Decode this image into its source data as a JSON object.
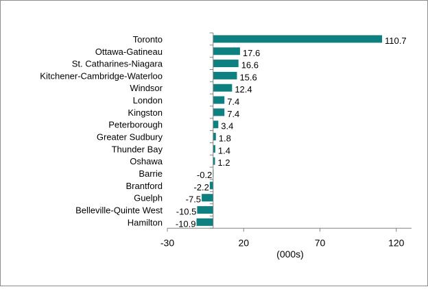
{
  "chart_data": {
    "type": "bar",
    "orientation": "horizontal",
    "categories": [
      "Toronto",
      "Ottawa-Gatineau",
      "St. Catharines-Niagara",
      "Kitchener-Cambridge-Waterloo",
      "Windsor",
      "London",
      "Kingston",
      "Peterborough",
      "Greater Sudbury",
      "Thunder Bay",
      "Oshawa",
      "Barrie",
      "Brantford",
      "Guelph",
      "Belleville-Quinte West",
      "Hamilton"
    ],
    "values": [
      110.7,
      17.6,
      16.6,
      15.6,
      12.4,
      7.4,
      7.4,
      3.4,
      1.8,
      1.4,
      1.2,
      -0.2,
      -2.2,
      -7.5,
      -10.5,
      -10.9
    ],
    "data_labels": [
      "110.7",
      "17.6",
      "16.6",
      "15.6",
      "12.4",
      "7.4",
      "7.4",
      "3.4",
      "1.8",
      "1.4",
      "1.2",
      "-0.2",
      "-2.2",
      "-7.5",
      "-10.5",
      "-10.9"
    ],
    "x_ticks": [
      "-30",
      "20",
      "70",
      "120"
    ],
    "xlabel": "(000s)",
    "xlim": [
      -30,
      130
    ],
    "legend": "none",
    "grid": false,
    "bar_color": "#0e8080"
  }
}
